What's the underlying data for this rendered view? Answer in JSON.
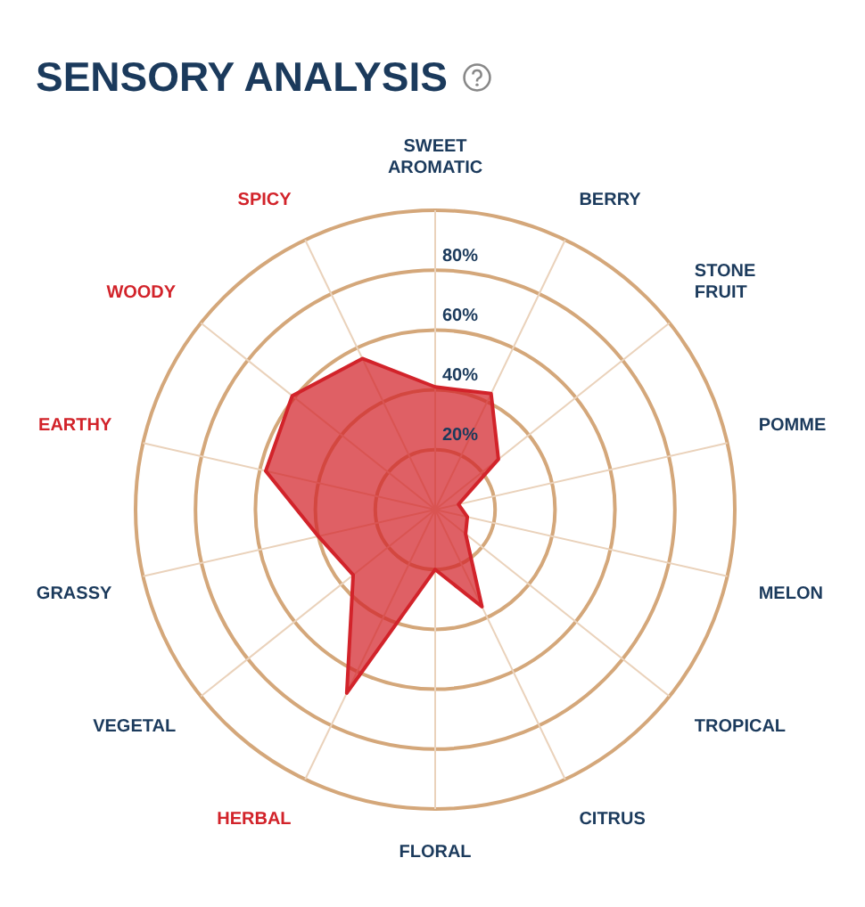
{
  "chart_data": {
    "type": "radar",
    "title": "SENSORY ANALYSIS",
    "categories": [
      "SWEET AROMATIC",
      "BERRY",
      "STONE FRUIT",
      "POMME",
      "MELON",
      "TROPICAL",
      "CITRUS",
      "FLORAL",
      "HERBAL",
      "VEGETAL",
      "GRASSY",
      "EARTHY",
      "WOODY",
      "SPICY"
    ],
    "colors": [
      "#1b3a5c",
      "#1b3a5c",
      "#1b3a5c",
      "#1b3a5c",
      "#1b3a5c",
      "#1b3a5c",
      "#1b3a5c",
      "#1b3a5c",
      "#d2232a",
      "#1b3a5c",
      "#1b3a5c",
      "#d2232a",
      "#d2232a",
      "#d2232a"
    ],
    "series": [
      {
        "color": "#d2232a",
        "values": [
          41,
          43,
          27,
          8,
          11,
          13,
          36,
          20,
          68,
          35,
          40,
          58,
          61,
          56
        ]
      }
    ],
    "ylim": [
      0,
      100
    ],
    "yticks": [
      {
        "value": 20,
        "label": "20%"
      },
      {
        "value": 40,
        "label": "40%"
      },
      {
        "value": 60,
        "label": "60%"
      },
      {
        "value": 80,
        "label": "80%"
      }
    ],
    "grid": true,
    "legend": false,
    "marker": "none"
  }
}
